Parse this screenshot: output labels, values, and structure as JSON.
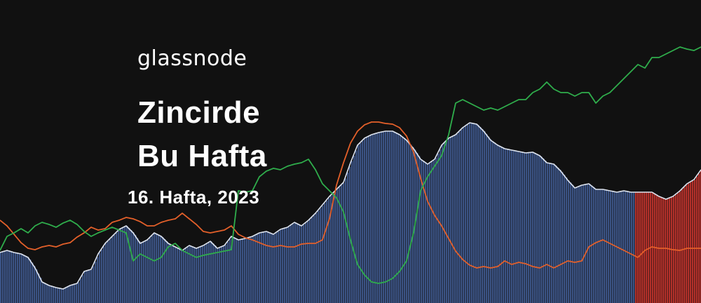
{
  "brand": {
    "name": "glassnode"
  },
  "headline": {
    "line1": "Zincirde",
    "line2": "Bu Hafta",
    "subtitle": "16. Hafta, 2023"
  },
  "colors": {
    "background": "#111111",
    "area_fill": "#3b5384",
    "area_line": "#dde3ee",
    "highlight_fill": "#b3302a",
    "orange_line": "#e4602a",
    "green_line": "#2fae4c"
  },
  "chart_data": {
    "type": "area",
    "grid": false,
    "legend": "none",
    "x": [
      0,
      10,
      20,
      30,
      40,
      50,
      60,
      70,
      80,
      90,
      100,
      110,
      120,
      130,
      140,
      150,
      160,
      170,
      180,
      190,
      200,
      210,
      220,
      230,
      240,
      250,
      260,
      270,
      280,
      290,
      300,
      310,
      320,
      330,
      340,
      350,
      360,
      370,
      380,
      390,
      400,
      410,
      420,
      430,
      440,
      450,
      460,
      470,
      480,
      490,
      500,
      510,
      520,
      530,
      540,
      550,
      560,
      570,
      580,
      590,
      600,
      610,
      620,
      630,
      640,
      650,
      660,
      670,
      680,
      690,
      700,
      710,
      720,
      730,
      740,
      750,
      760,
      770,
      780,
      790,
      800,
      810,
      820,
      830,
      840,
      850,
      860,
      870,
      880,
      890,
      900,
      910,
      920,
      930,
      940,
      950,
      960,
      970,
      980,
      990,
      1000
    ],
    "ylim": [
      0,
      432
    ],
    "highlight_x_start": 905,
    "series": [
      {
        "role": "area",
        "values": [
          72,
          75,
          72,
          70,
          65,
          50,
          30,
          25,
          22,
          20,
          25,
          28,
          45,
          48,
          70,
          85,
          95,
          105,
          110,
          100,
          85,
          90,
          100,
          95,
          85,
          80,
          75,
          82,
          78,
          82,
          88,
          78,
          82,
          95,
          90,
          92,
          95,
          100,
          102,
          98,
          105,
          108,
          115,
          110,
          118,
          128,
          140,
          152,
          162,
          172,
          200,
          225,
          235,
          240,
          243,
          245,
          245,
          240,
          232,
          220,
          205,
          198,
          205,
          225,
          235,
          240,
          250,
          257,
          255,
          245,
          232,
          225,
          220,
          218,
          216,
          214,
          215,
          210,
          200,
          198,
          188,
          175,
          164,
          168,
          170,
          162,
          162,
          160,
          158,
          160,
          158,
          158,
          158,
          158,
          152,
          148,
          152,
          160,
          170,
          176,
          190
        ]
      },
      {
        "role": "orange",
        "values": [
          118,
          110,
          98,
          86,
          78,
          76,
          80,
          82,
          80,
          84,
          86,
          94,
          100,
          108,
          104,
          106,
          115,
          118,
          122,
          120,
          116,
          110,
          110,
          115,
          118,
          120,
          128,
          120,
          112,
          102,
          100,
          102,
          104,
          110,
          98,
          93,
          90,
          86,
          82,
          80,
          82,
          80,
          80,
          84,
          85,
          85,
          90,
          120,
          168,
          200,
          228,
          245,
          254,
          258,
          258,
          256,
          255,
          250,
          238,
          215,
          178,
          145,
          125,
          110,
          92,
          74,
          62,
          54,
          50,
          52,
          50,
          52,
          60,
          55,
          58,
          56,
          52,
          50,
          55,
          50,
          55,
          60,
          58,
          60,
          80,
          86,
          90,
          85,
          80,
          75,
          70,
          65,
          75,
          80,
          78,
          78,
          76,
          75,
          78,
          78,
          78
        ]
      },
      {
        "role": "green",
        "values": [
          75,
          95,
          100,
          106,
          100,
          110,
          115,
          112,
          108,
          114,
          118,
          112,
          102,
          95,
          100,
          104,
          108,
          104,
          100,
          60,
          70,
          65,
          60,
          65,
          80,
          85,
          75,
          70,
          65,
          68,
          70,
          72,
          74,
          76,
          160,
          158,
          160,
          180,
          188,
          192,
          190,
          195,
          198,
          200,
          205,
          190,
          170,
          160,
          150,
          130,
          90,
          55,
          40,
          30,
          28,
          30,
          35,
          45,
          60,
          100,
          160,
          180,
          195,
          210,
          240,
          285,
          290,
          285,
          280,
          275,
          278,
          275,
          280,
          285,
          290,
          290,
          300,
          305,
          315,
          305,
          300,
          300,
          295,
          300,
          300,
          285,
          295,
          300,
          310,
          320,
          330,
          340,
          335,
          350,
          350,
          355,
          360,
          365,
          362,
          360,
          365
        ]
      }
    ]
  }
}
